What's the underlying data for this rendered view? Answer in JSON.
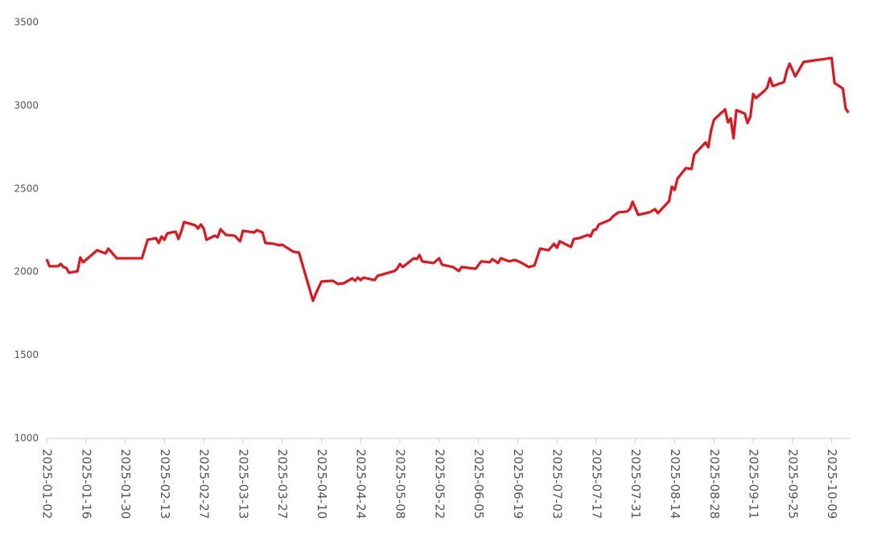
{
  "chart_data": {
    "type": "line",
    "x": [
      "2025-01-02",
      "2025-01-03",
      "2025-01-06",
      "2025-01-07",
      "2025-01-08",
      "2025-01-09",
      "2025-01-10",
      "2025-01-13",
      "2025-01-14",
      "2025-01-15",
      "2025-01-20",
      "2025-01-23",
      "2025-01-24",
      "2025-01-27",
      "2025-02-05",
      "2025-02-07",
      "2025-02-10",
      "2025-02-11",
      "2025-02-12",
      "2025-02-13",
      "2025-02-14",
      "2025-02-17",
      "2025-02-18",
      "2025-02-19",
      "2025-02-20",
      "2025-02-24",
      "2025-02-25",
      "2025-02-26",
      "2025-02-27",
      "2025-02-28",
      "2025-03-03",
      "2025-03-04",
      "2025-03-05",
      "2025-03-07",
      "2025-03-10",
      "2025-03-12",
      "2025-03-13",
      "2025-03-17",
      "2025-03-18",
      "2025-03-20",
      "2025-03-21",
      "2025-03-24",
      "2025-03-26",
      "2025-03-27",
      "2025-03-31",
      "2025-04-02",
      "2025-04-07",
      "2025-04-08",
      "2025-04-10",
      "2025-04-14",
      "2025-04-16",
      "2025-04-18",
      "2025-04-21",
      "2025-04-22",
      "2025-04-23",
      "2025-04-24",
      "2025-04-25",
      "2025-04-29",
      "2025-04-30",
      "2025-05-06",
      "2025-05-07",
      "2025-05-08",
      "2025-05-09",
      "2025-05-13",
      "2025-05-14",
      "2025-05-15",
      "2025-05-16",
      "2025-05-20",
      "2025-05-22",
      "2025-05-23",
      "2025-05-27",
      "2025-05-29",
      "2025-05-30",
      "2025-06-04",
      "2025-06-06",
      "2025-06-09",
      "2025-06-10",
      "2025-06-12",
      "2025-06-13",
      "2025-06-16",
      "2025-06-18",
      "2025-06-20",
      "2025-06-23",
      "2025-06-25",
      "2025-06-27",
      "2025-06-30",
      "2025-07-02",
      "2025-07-03",
      "2025-07-04",
      "2025-07-08",
      "2025-07-09",
      "2025-07-11",
      "2025-07-14",
      "2025-07-15",
      "2025-07-16",
      "2025-07-17",
      "2025-07-18",
      "2025-07-22",
      "2025-07-23",
      "2025-07-25",
      "2025-07-28",
      "2025-07-29",
      "2025-07-30",
      "2025-08-01",
      "2025-08-05",
      "2025-08-07",
      "2025-08-08",
      "2025-08-12",
      "2025-08-13",
      "2025-08-14",
      "2025-08-15",
      "2025-08-18",
      "2025-08-20",
      "2025-08-21",
      "2025-08-25",
      "2025-08-26",
      "2025-08-27",
      "2025-08-28",
      "2025-09-01",
      "2025-09-02",
      "2025-09-03",
      "2025-09-04",
      "2025-09-05",
      "2025-09-08",
      "2025-09-09",
      "2025-09-10",
      "2025-09-11",
      "2025-09-12",
      "2025-09-15",
      "2025-09-16",
      "2025-09-17",
      "2025-09-18",
      "2025-09-22",
      "2025-09-23",
      "2025-09-24",
      "2025-09-26",
      "2025-09-29",
      "2025-10-09",
      "2025-10-10",
      "2025-10-13",
      "2025-10-14",
      "2025-10-15"
    ],
    "values": [
      2078,
      2035,
      2035,
      2049,
      2030,
      2025,
      1996,
      2005,
      2088,
      2059,
      2131,
      2112,
      2141,
      2083,
      2083,
      2194,
      2204,
      2175,
      2214,
      2194,
      2233,
      2243,
      2199,
      2243,
      2301,
      2281,
      2262,
      2286,
      2262,
      2194,
      2219,
      2209,
      2257,
      2223,
      2219,
      2185,
      2248,
      2238,
      2252,
      2238,
      2175,
      2170,
      2161,
      2165,
      2122,
      2117,
      1827,
      1870,
      1943,
      1948,
      1928,
      1933,
      1962,
      1948,
      1967,
      1952,
      1967,
      1952,
      1977,
      2006,
      2020,
      2049,
      2030,
      2083,
      2078,
      2102,
      2064,
      2054,
      2083,
      2045,
      2030,
      2006,
      2030,
      2020,
      2064,
      2059,
      2078,
      2054,
      2083,
      2064,
      2073,
      2059,
      2030,
      2040,
      2141,
      2131,
      2170,
      2146,
      2185,
      2151,
      2199,
      2204,
      2223,
      2214,
      2252,
      2257,
      2286,
      2315,
      2335,
      2359,
      2364,
      2378,
      2422,
      2344,
      2359,
      2378,
      2354,
      2426,
      2513,
      2494,
      2562,
      2625,
      2620,
      2707,
      2779,
      2750,
      2852,
      2915,
      2978,
      2900,
      2924,
      2804,
      2973,
      2953,
      2896,
      2934,
      3070,
      3046,
      3089,
      3108,
      3166,
      3118,
      3142,
      3210,
      3253,
      3176,
      3263,
      3287,
      3137,
      3103,
      2983,
      2958
    ],
    "color": "#e3141b",
    "xlim": [
      "2025-01-02",
      "2025-10-16"
    ],
    "xticks": [
      "2025-01-02",
      "2025-01-16",
      "2025-01-30",
      "2025-02-13",
      "2025-02-27",
      "2025-03-13",
      "2025-03-27",
      "2025-04-10",
      "2025-04-24",
      "2025-05-08",
      "2025-05-22",
      "2025-06-05",
      "2025-06-19",
      "2025-07-03",
      "2025-07-17",
      "2025-07-31",
      "2025-08-14",
      "2025-08-28",
      "2025-09-11",
      "2025-09-25",
      "2025-10-09"
    ],
    "ylim": [
      1000,
      3500
    ],
    "yticks": [
      1000,
      1500,
      2000,
      2500,
      3000,
      3500
    ],
    "grid": false
  }
}
